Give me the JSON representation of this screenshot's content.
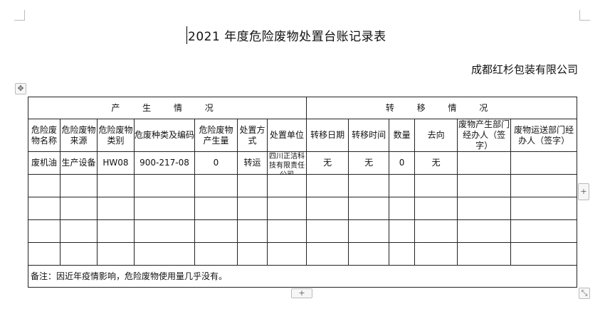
{
  "title": "2021 年度危险废物处置台账记录表",
  "company": "成都红杉包装有限公司",
  "sections": {
    "produce": "产 生 情 况",
    "transfer": "转 移 情 况"
  },
  "headers": [
    "危险废物名称",
    "危险废物来源",
    "危险废物类别",
    "危废种类及编码",
    "危险废物产生量",
    "处置方式",
    "处置单位",
    "转移日期",
    "转移时间",
    "数量",
    "去向",
    "废物产生部门经办人（签字）",
    "废物运送部门经办人（签字）"
  ],
  "rows": [
    [
      "废机油",
      "生产设备",
      "HW08",
      "900-217-08",
      "0",
      "转运",
      "四川正洁科技有限责任公司",
      "无",
      "无",
      "0",
      "无",
      "",
      ""
    ]
  ],
  "empty_rows": 4,
  "note": "备注：因近年疫情影响，危险废物使用量几乎没有。",
  "handles": {
    "move": "✥",
    "add_row": "+",
    "add_col": "+",
    "resize": "⤡"
  }
}
